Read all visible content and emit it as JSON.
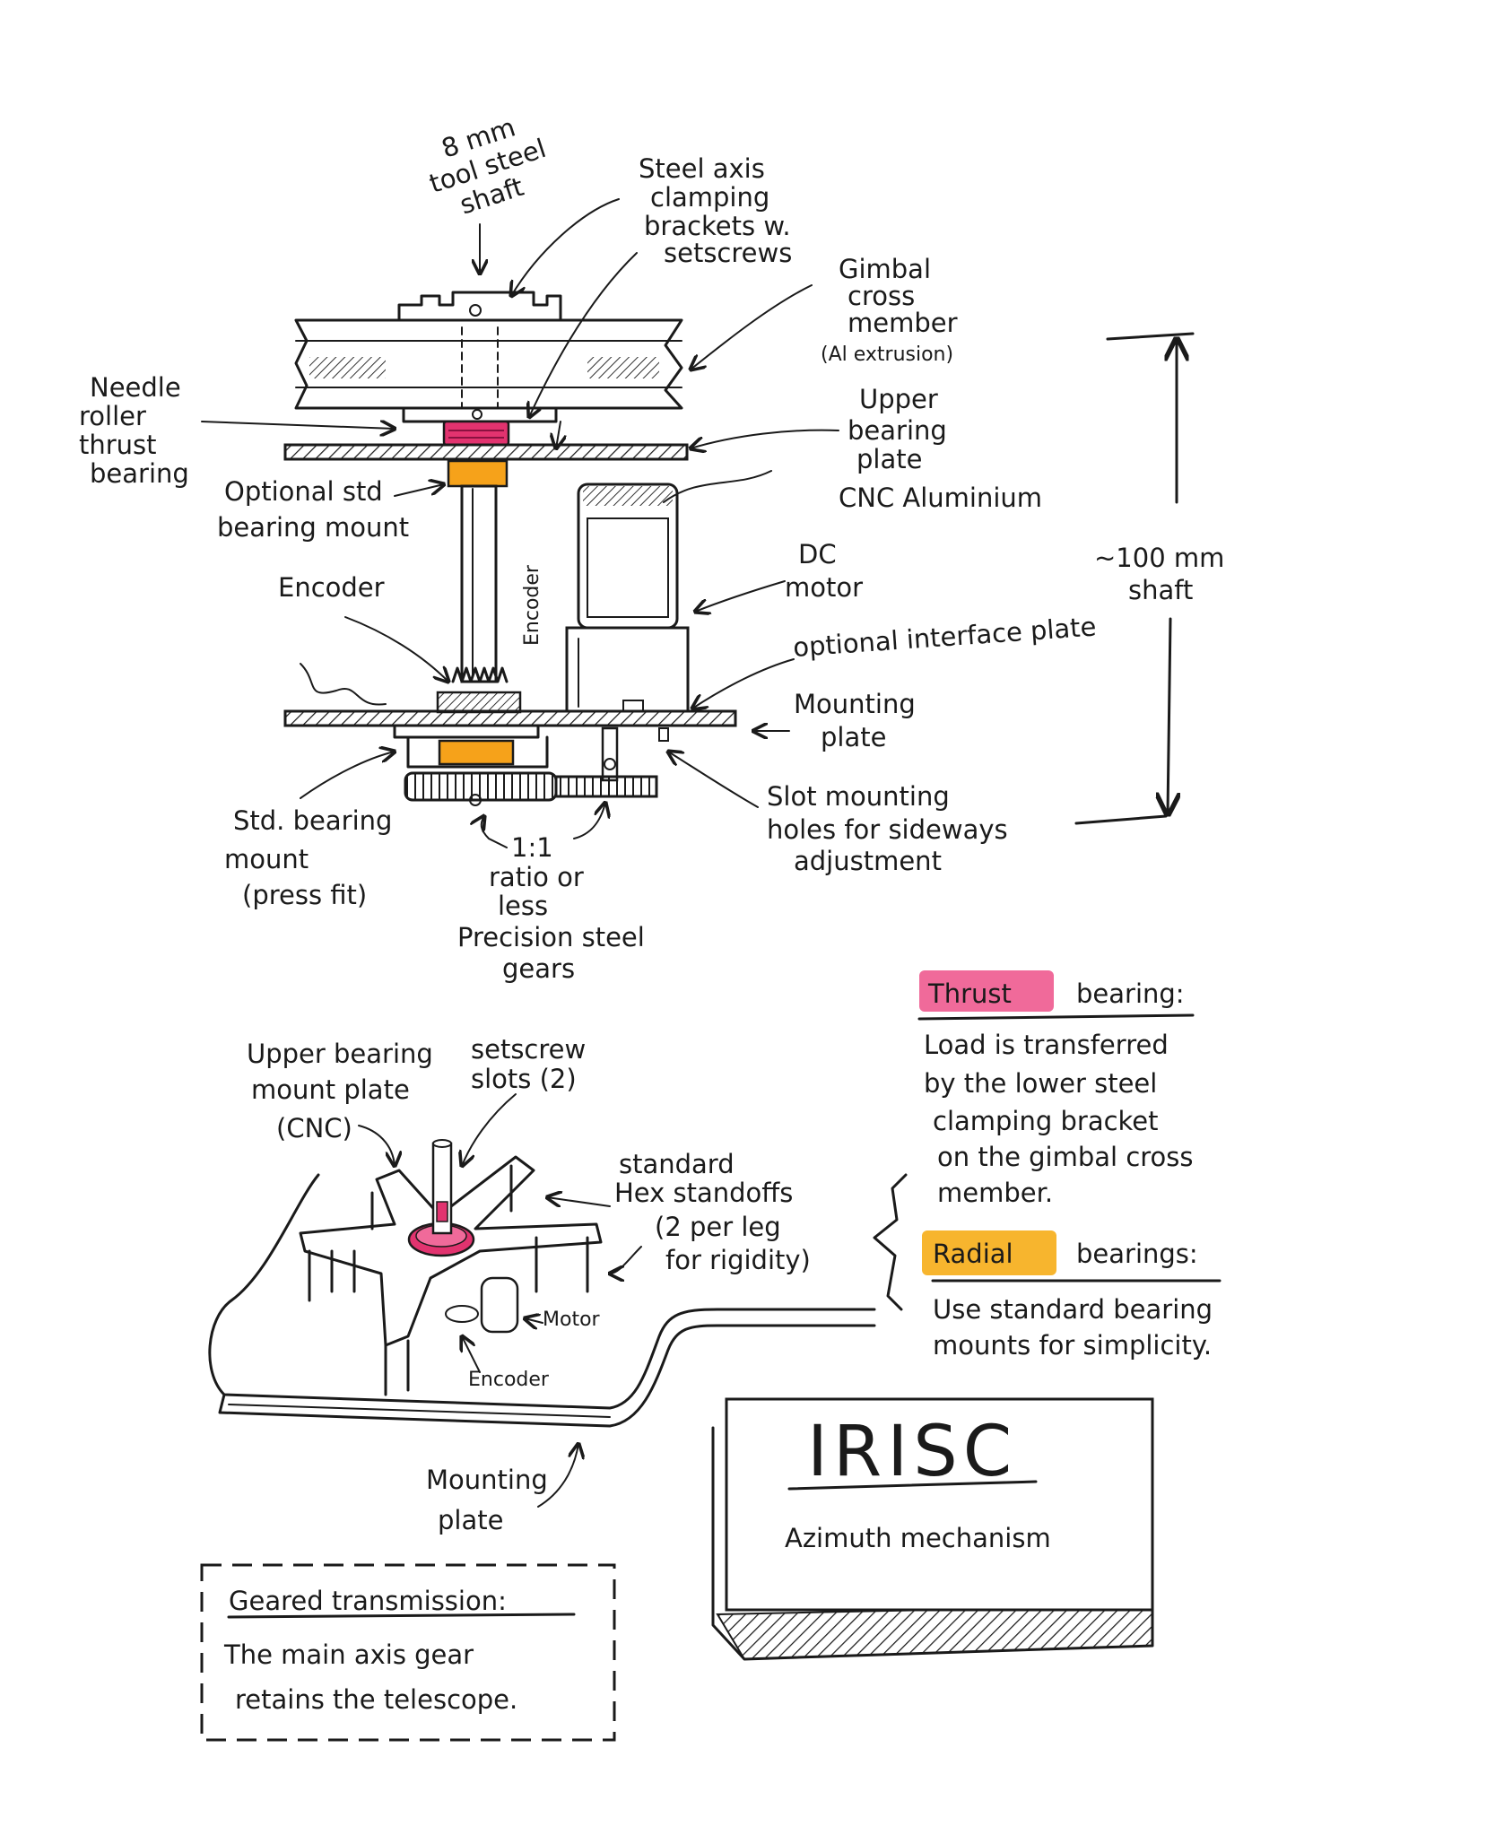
{
  "labels": {
    "shaft": [
      "8 mm",
      "tool steel",
      "shaft"
    ],
    "brackets": [
      "Steel axis",
      "clamping",
      "brackets w.",
      "setscrews"
    ],
    "cross_member": [
      "Gimbal",
      "cross",
      "member",
      "(Al extrusion)"
    ],
    "needle": [
      "Needle",
      "roller",
      "thrust",
      "bearing"
    ],
    "upper_plate": [
      "Upper",
      "bearing",
      "plate",
      "CNC Aluminium"
    ],
    "opt_mount": [
      "Optional std",
      "bearing mount"
    ],
    "encoder_side": "Encoder",
    "dc_motor": [
      "DC",
      "motor"
    ],
    "shaft_len": [
      "~100 mm",
      "shaft"
    ],
    "encoder": "Encoder",
    "interface": "optional interface plate",
    "mounting_plate": [
      "Mounting",
      "plate"
    ],
    "slot_holes": [
      "Slot mounting",
      "holes for sideways",
      "adjustment"
    ],
    "std_mount": [
      "Std. bearing",
      "mount",
      "(press fit)"
    ],
    "gears": [
      "1:1",
      "ratio or",
      "less",
      "Precision steel",
      "gears"
    ],
    "iso_upper": [
      "Upper bearing",
      "mount plate",
      "(CNC)"
    ],
    "iso_setscrew": [
      "setscrew",
      "slots (2)"
    ],
    "iso_standoffs": [
      "standard",
      "Hex standoffs",
      "(2 per leg",
      "for rigidity)"
    ],
    "iso_motor": "Motor",
    "iso_encoder": "Encoder",
    "iso_mounting": [
      "Mounting",
      "plate"
    ]
  },
  "notes": {
    "thrust_word": "Thrust",
    "thrust_rest": "bearing:",
    "thrust_body": [
      "Load is transferred",
      "by the lower steel",
      "clamping bracket",
      "on the gimbal cross",
      "member."
    ],
    "radial_word": "Radial",
    "radial_rest": "bearings:",
    "radial_body": [
      "Use standard bearing",
      "mounts for simplicity."
    ],
    "geared_title": "Geared transmission:",
    "geared_body": [
      "The main axis gear",
      "retains the telescope."
    ]
  },
  "title_card": {
    "title": "IRISC",
    "subtitle": "Azimuth mechanism"
  },
  "colors": {
    "ink": "#1a1a1a",
    "thrust": "#e2336f",
    "thrust_highlight": "#f06a9a",
    "radial": "#f6a21a",
    "radial_highlight": "#f7b52e"
  }
}
